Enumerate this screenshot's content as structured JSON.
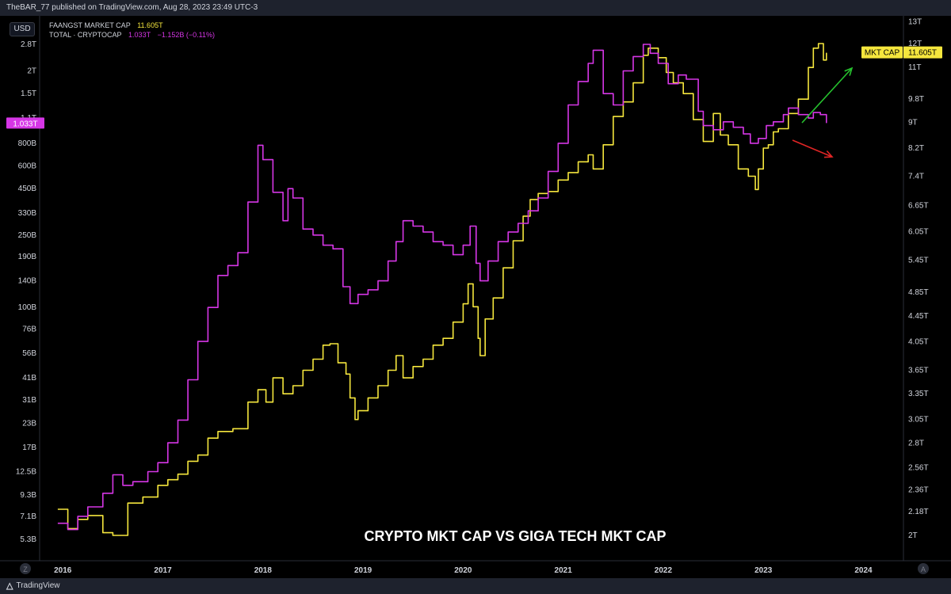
{
  "header": {
    "publish_line": "TheBAR_77 published on TradingView.com, Aug 28, 2023 23:49 UTC-3"
  },
  "toolbar": {
    "currency": "USD",
    "left_corner": "Z",
    "right_corner": "A"
  },
  "legend": {
    "series1_name": "FAANGST MARKET CAP",
    "series1_value": "11.605T",
    "series2_name": "TOTAL · CRYPTOCAP",
    "series2_value": "1.033T",
    "series2_change": "−1.152B (−0.11%)"
  },
  "footer": {
    "brand": "TradingView"
  },
  "colors": {
    "faangst": "#f5e63d",
    "crypto": "#d636e6",
    "background": "#000000",
    "arrow_up": "#26c12e",
    "arrow_down": "#e02525"
  },
  "chart_data": {
    "type": "line",
    "title": "CRYPTO MKT CAP VS GIGA TECH MKT CAP",
    "x_ticks": [
      "2016",
      "2017",
      "2018",
      "2019",
      "2020",
      "2021",
      "2022",
      "2023",
      "2024"
    ],
    "xlim": [
      2015.85,
      2024.45
    ],
    "left_axis": {
      "scale": "log",
      "ticks": [
        "2.8T",
        "2T",
        "1.5T",
        "1.1T",
        "800B",
        "600B",
        "450B",
        "330B",
        "250B",
        "190B",
        "140B",
        "100B",
        "76B",
        "56B",
        "41B",
        "31B",
        "23B",
        "17B",
        "12.5B",
        "9.3B",
        "7.1B",
        "5.3B"
      ],
      "current_label": "1.033T"
    },
    "right_axis": {
      "scale": "log",
      "ticks": [
        "13T",
        "12T",
        "11T",
        "9.8T",
        "9T",
        "8.2T",
        "7.4T",
        "6.65T",
        "6.05T",
        "5.45T",
        "4.85T",
        "4.45T",
        "4.05T",
        "3.65T",
        "3.35T",
        "3.05T",
        "2.8T",
        "2.56T",
        "2.36T",
        "2.18T",
        "2T"
      ],
      "current_label": "11.605T",
      "current_label_name": "MKT CAP"
    },
    "grid": false,
    "series": [
      {
        "name": "FAANGST MARKET CAP",
        "axis": "right",
        "unit": "T",
        "points": [
          [
            2016.0,
            2.2
          ],
          [
            2016.1,
            2.05
          ],
          [
            2016.2,
            2.12
          ],
          [
            2016.3,
            2.15
          ],
          [
            2016.45,
            2.02
          ],
          [
            2016.55,
            2.0
          ],
          [
            2016.7,
            2.25
          ],
          [
            2016.85,
            2.3
          ],
          [
            2017.0,
            2.4
          ],
          [
            2017.1,
            2.45
          ],
          [
            2017.2,
            2.5
          ],
          [
            2017.3,
            2.62
          ],
          [
            2017.4,
            2.68
          ],
          [
            2017.5,
            2.85
          ],
          [
            2017.6,
            2.92
          ],
          [
            2017.75,
            2.95
          ],
          [
            2017.9,
            3.25
          ],
          [
            2018.0,
            3.4
          ],
          [
            2018.08,
            3.25
          ],
          [
            2018.15,
            3.55
          ],
          [
            2018.25,
            3.35
          ],
          [
            2018.35,
            3.45
          ],
          [
            2018.45,
            3.65
          ],
          [
            2018.55,
            3.8
          ],
          [
            2018.65,
            4.0
          ],
          [
            2018.72,
            4.02
          ],
          [
            2018.8,
            3.75
          ],
          [
            2018.88,
            3.6
          ],
          [
            2018.92,
            3.3
          ],
          [
            2018.97,
            3.05
          ],
          [
            2019.0,
            3.15
          ],
          [
            2019.1,
            3.3
          ],
          [
            2019.2,
            3.45
          ],
          [
            2019.3,
            3.65
          ],
          [
            2019.38,
            3.85
          ],
          [
            2019.45,
            3.55
          ],
          [
            2019.55,
            3.7
          ],
          [
            2019.65,
            3.8
          ],
          [
            2019.75,
            4.0
          ],
          [
            2019.85,
            4.1
          ],
          [
            2019.95,
            4.35
          ],
          [
            2020.05,
            4.65
          ],
          [
            2020.1,
            5.0
          ],
          [
            2020.15,
            4.6
          ],
          [
            2020.2,
            4.1
          ],
          [
            2020.22,
            3.85
          ],
          [
            2020.27,
            4.4
          ],
          [
            2020.35,
            4.75
          ],
          [
            2020.45,
            5.3
          ],
          [
            2020.55,
            5.85
          ],
          [
            2020.65,
            6.4
          ],
          [
            2020.72,
            6.8
          ],
          [
            2020.8,
            6.95
          ],
          [
            2020.9,
            7.0
          ],
          [
            2021.0,
            7.3
          ],
          [
            2021.1,
            7.5
          ],
          [
            2021.2,
            7.8
          ],
          [
            2021.3,
            8.0
          ],
          [
            2021.35,
            7.6
          ],
          [
            2021.45,
            8.3
          ],
          [
            2021.55,
            9.2
          ],
          [
            2021.65,
            9.7
          ],
          [
            2021.75,
            10.4
          ],
          [
            2021.85,
            11.5
          ],
          [
            2021.9,
            11.8
          ],
          [
            2022.0,
            11.4
          ],
          [
            2022.08,
            10.8
          ],
          [
            2022.15,
            10.4
          ],
          [
            2022.25,
            10.0
          ],
          [
            2022.35,
            9.1
          ],
          [
            2022.45,
            8.4
          ],
          [
            2022.55,
            9.3
          ],
          [
            2022.62,
            8.6
          ],
          [
            2022.7,
            8.3
          ],
          [
            2022.8,
            7.6
          ],
          [
            2022.9,
            7.4
          ],
          [
            2022.97,
            7.05
          ],
          [
            2023.0,
            7.6
          ],
          [
            2023.05,
            8.2
          ],
          [
            2023.1,
            8.3
          ],
          [
            2023.15,
            8.7
          ],
          [
            2023.2,
            8.8
          ],
          [
            2023.3,
            9.3
          ],
          [
            2023.4,
            9.8
          ],
          [
            2023.5,
            11.0
          ],
          [
            2023.55,
            11.8
          ],
          [
            2023.6,
            12.0
          ],
          [
            2023.65,
            11.3
          ],
          [
            2023.68,
            11.605
          ]
        ]
      },
      {
        "name": "TOTAL · CRYPTOCAP",
        "axis": "left",
        "unit": "B",
        "points": [
          [
            2016.0,
            6.5
          ],
          [
            2016.1,
            6.0
          ],
          [
            2016.2,
            7.1
          ],
          [
            2016.3,
            8.0
          ],
          [
            2016.45,
            9.5
          ],
          [
            2016.55,
            12.0
          ],
          [
            2016.65,
            10.5
          ],
          [
            2016.75,
            11.0
          ],
          [
            2016.9,
            12.5
          ],
          [
            2017.0,
            14.0
          ],
          [
            2017.1,
            18.0
          ],
          [
            2017.2,
            24.0
          ],
          [
            2017.3,
            40.0
          ],
          [
            2017.4,
            65.0
          ],
          [
            2017.5,
            100.0
          ],
          [
            2017.6,
            150.0
          ],
          [
            2017.7,
            170.0
          ],
          [
            2017.8,
            200.0
          ],
          [
            2017.9,
            380.0
          ],
          [
            2018.0,
            780.0
          ],
          [
            2018.05,
            650.0
          ],
          [
            2018.15,
            430.0
          ],
          [
            2018.25,
            300.0
          ],
          [
            2018.3,
            450.0
          ],
          [
            2018.35,
            400.0
          ],
          [
            2018.45,
            270.0
          ],
          [
            2018.55,
            250.0
          ],
          [
            2018.65,
            220.0
          ],
          [
            2018.75,
            210.0
          ],
          [
            2018.85,
            130.0
          ],
          [
            2018.92,
            105.0
          ],
          [
            2019.0,
            118.0
          ],
          [
            2019.1,
            125.0
          ],
          [
            2019.2,
            140.0
          ],
          [
            2019.3,
            180.0
          ],
          [
            2019.38,
            230.0
          ],
          [
            2019.45,
            300.0
          ],
          [
            2019.55,
            280.0
          ],
          [
            2019.65,
            260.0
          ],
          [
            2019.75,
            230.0
          ],
          [
            2019.85,
            220.0
          ],
          [
            2019.95,
            195.0
          ],
          [
            2020.05,
            220.0
          ],
          [
            2020.12,
            280.0
          ],
          [
            2020.18,
            175.0
          ],
          [
            2020.22,
            140.0
          ],
          [
            2020.3,
            180.0
          ],
          [
            2020.4,
            230.0
          ],
          [
            2020.5,
            260.0
          ],
          [
            2020.6,
            290.0
          ],
          [
            2020.7,
            340.0
          ],
          [
            2020.8,
            400.0
          ],
          [
            2020.9,
            560.0
          ],
          [
            2021.0,
            800.0
          ],
          [
            2021.1,
            1300.0
          ],
          [
            2021.2,
            1750.0
          ],
          [
            2021.3,
            2200.0
          ],
          [
            2021.35,
            2600.0
          ],
          [
            2021.45,
            1500.0
          ],
          [
            2021.55,
            1300.0
          ],
          [
            2021.65,
            2000.0
          ],
          [
            2021.75,
            2400.0
          ],
          [
            2021.85,
            2800.0
          ],
          [
            2021.92,
            2500.0
          ],
          [
            2022.0,
            2200.0
          ],
          [
            2022.1,
            1700.0
          ],
          [
            2022.2,
            1900.0
          ],
          [
            2022.28,
            1800.0
          ],
          [
            2022.4,
            1200.0
          ],
          [
            2022.45,
            1000.0
          ],
          [
            2022.55,
            950.0
          ],
          [
            2022.65,
            1050.0
          ],
          [
            2022.75,
            980.0
          ],
          [
            2022.85,
            900.0
          ],
          [
            2022.92,
            800.0
          ],
          [
            2023.0,
            850.0
          ],
          [
            2023.08,
            1000.0
          ],
          [
            2023.15,
            1050.0
          ],
          [
            2023.25,
            1150.0
          ],
          [
            2023.3,
            1250.0
          ],
          [
            2023.4,
            1150.0
          ],
          [
            2023.5,
            1100.0
          ],
          [
            2023.55,
            1180.0
          ],
          [
            2023.62,
            1150.0
          ],
          [
            2023.68,
            1033.0
          ]
        ]
      }
    ]
  }
}
